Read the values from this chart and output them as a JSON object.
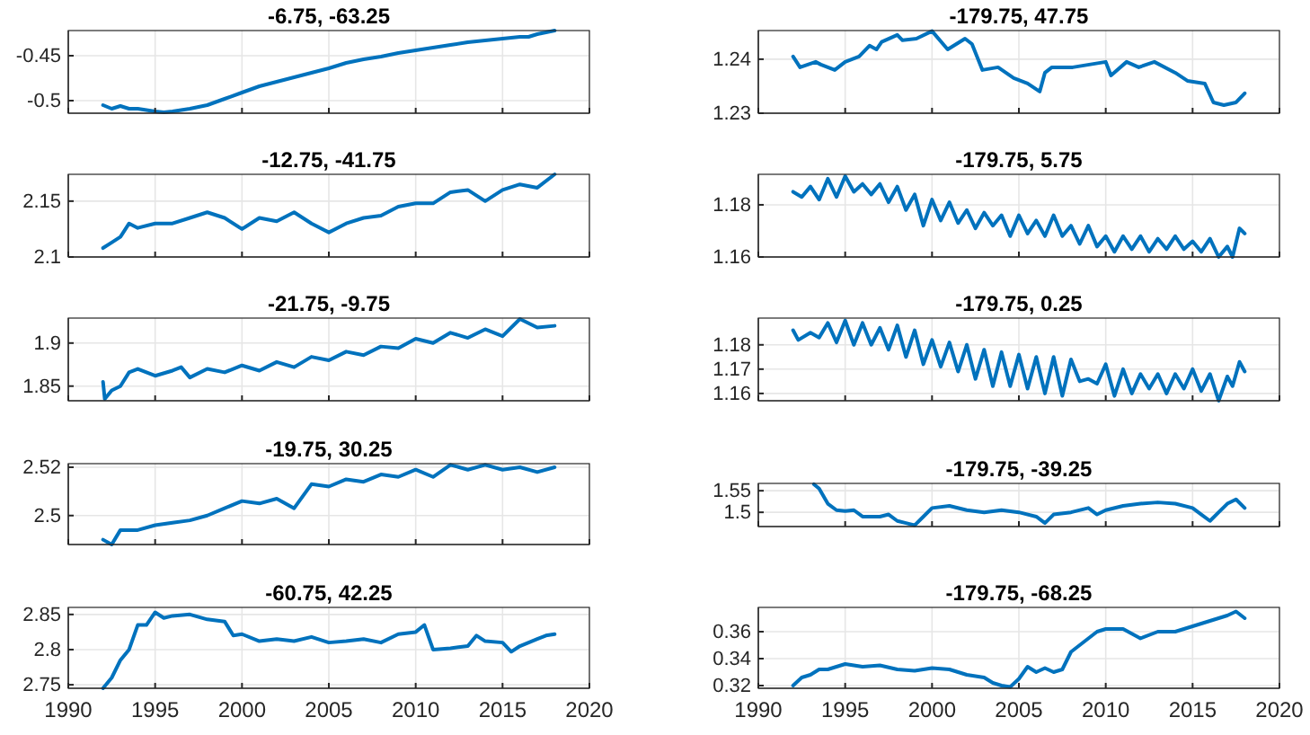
{
  "chart_data": [
    {
      "type": "line",
      "title": "-6.75, -63.25",
      "xlim": [
        1990,
        2020
      ],
      "xticks": [
        1990,
        1995,
        2000,
        2005,
        2010,
        2015,
        2020
      ],
      "ylim": [
        -0.514,
        -0.422
      ],
      "yticks": [
        -0.5,
        -0.45
      ],
      "grid": true,
      "tick_labels": "y",
      "line_style": "solid",
      "marker": "none",
      "series": [
        {
          "color": "#0072bd",
          "x": [
            1992,
            1992.5,
            1993,
            1993.5,
            1994,
            1995,
            1995.5,
            1996,
            1997,
            1998,
            1999,
            2000,
            2001,
            2002,
            2003,
            2004,
            2005,
            2006,
            2007,
            2008,
            2009,
            2010,
            2011,
            2012,
            2013,
            2014,
            2015,
            2016,
            2016.5,
            2017,
            2018
          ],
          "values": [
            -0.505,
            -0.509,
            -0.506,
            -0.509,
            -0.509,
            -0.512,
            -0.513,
            -0.512,
            -0.509,
            -0.505,
            -0.498,
            -0.491,
            -0.484,
            -0.479,
            -0.474,
            -0.469,
            -0.464,
            -0.458,
            -0.454,
            -0.451,
            -0.447,
            -0.444,
            -0.441,
            -0.438,
            -0.435,
            -0.433,
            -0.431,
            -0.429,
            -0.429,
            -0.426,
            -0.422
          ]
        }
      ]
    },
    {
      "type": "line",
      "title": "-12.75, -41.75",
      "xlim": [
        1990,
        2020
      ],
      "xticks": [
        1990,
        1995,
        2000,
        2005,
        2010,
        2015,
        2020
      ],
      "ylim": [
        2.1,
        2.174
      ],
      "yticks": [
        2.1,
        2.15
      ],
      "grid": true,
      "tick_labels": "y",
      "line_style": "solid",
      "marker": "none",
      "series": [
        {
          "color": "#0072bd",
          "x": [
            1992,
            1992.5,
            1993,
            1993.5,
            1994,
            1995,
            1996,
            1997,
            1998,
            1999,
            2000,
            2001,
            2002,
            2003,
            2004,
            2005,
            2006,
            2007,
            2008,
            2009,
            2010,
            2011,
            2012,
            2013,
            2014,
            2015,
            2016,
            2017,
            2018
          ],
          "values": [
            2.108,
            2.113,
            2.118,
            2.13,
            2.126,
            2.13,
            2.13,
            2.135,
            2.14,
            2.135,
            2.125,
            2.135,
            2.132,
            2.14,
            2.13,
            2.122,
            2.13,
            2.135,
            2.137,
            2.145,
            2.148,
            2.148,
            2.158,
            2.16,
            2.15,
            2.16,
            2.165,
            2.162,
            2.174
          ]
        }
      ]
    },
    {
      "type": "line",
      "title": "-21.75, -9.75",
      "xlim": [
        1990,
        2020
      ],
      "xticks": [
        1990,
        1995,
        2000,
        2005,
        2010,
        2015,
        2020
      ],
      "ylim": [
        1.833,
        1.929
      ],
      "yticks": [
        1.85,
        1.9
      ],
      "grid": true,
      "tick_labels": "y",
      "line_style": "solid",
      "marker": "none",
      "series": [
        {
          "color": "#0072bd",
          "x": [
            1992,
            1992.1,
            1992.5,
            1993,
            1993.5,
            1994,
            1995,
            1996,
            1996.5,
            1997,
            1998,
            1999,
            2000,
            2001,
            2002,
            2003,
            2004,
            2005,
            2006,
            2007,
            2008,
            2009,
            2010,
            2011,
            2012,
            2013,
            2014,
            2015,
            2016,
            2017,
            2018
          ],
          "values": [
            1.855,
            1.835,
            1.845,
            1.85,
            1.866,
            1.87,
            1.862,
            1.868,
            1.872,
            1.86,
            1.87,
            1.866,
            1.874,
            1.868,
            1.878,
            1.872,
            1.884,
            1.88,
            1.89,
            1.886,
            1.896,
            1.894,
            1.905,
            1.9,
            1.912,
            1.906,
            1.916,
            1.908,
            1.928,
            1.918,
            1.92
          ]
        }
      ]
    },
    {
      "type": "line",
      "title": "-19.75, 30.25",
      "xlim": [
        1990,
        2020
      ],
      "xticks": [
        1990,
        1995,
        2000,
        2005,
        2010,
        2015,
        2020
      ],
      "ylim": [
        2.488,
        2.5215
      ],
      "yticks": [
        2.5,
        2.52
      ],
      "grid": true,
      "tick_labels": "y",
      "line_style": "solid",
      "marker": "none",
      "series": [
        {
          "color": "#0072bd",
          "x": [
            1992,
            1992.5,
            1993,
            1994,
            1995,
            1996,
            1997,
            1998,
            1999,
            2000,
            2001,
            2002,
            2003,
            2004,
            2005,
            2006,
            2007,
            2008,
            2009,
            2010,
            2011,
            2012,
            2013,
            2014,
            2015,
            2016,
            2017,
            2018
          ],
          "values": [
            2.49,
            2.488,
            2.494,
            2.494,
            2.496,
            2.497,
            2.498,
            2.5,
            2.503,
            2.506,
            2.505,
            2.507,
            2.503,
            2.513,
            2.512,
            2.515,
            2.514,
            2.517,
            2.516,
            2.519,
            2.516,
            2.521,
            2.519,
            2.521,
            2.519,
            2.52,
            2.518,
            2.52
          ]
        }
      ]
    },
    {
      "type": "line",
      "title": "-60.75, 42.25",
      "xlim": [
        1990,
        2020
      ],
      "xticks": [
        1990,
        1995,
        2000,
        2005,
        2010,
        2015,
        2020
      ],
      "ylim": [
        2.745,
        2.86
      ],
      "yticks": [
        2.75,
        2.8,
        2.85
      ],
      "grid": true,
      "line_style": "solid",
      "marker": "none",
      "series": [
        {
          "color": "#0072bd",
          "x": [
            1992,
            1992.5,
            1993,
            1993.5,
            1994,
            1994.5,
            1995,
            1995.5,
            1996,
            1997,
            1998,
            1999,
            1999.5,
            2000,
            2001,
            2002,
            2003,
            2004,
            2005,
            2006,
            2007,
            2008,
            2009,
            2010,
            2010.5,
            2011,
            2012,
            2013,
            2013.5,
            2014,
            2015,
            2015.5,
            2016,
            2017,
            2017.5,
            2018
          ],
          "values": [
            2.745,
            2.76,
            2.785,
            2.8,
            2.835,
            2.835,
            2.853,
            2.845,
            2.848,
            2.85,
            2.843,
            2.84,
            2.82,
            2.822,
            2.812,
            2.815,
            2.812,
            2.818,
            2.81,
            2.812,
            2.815,
            2.81,
            2.822,
            2.825,
            2.835,
            2.8,
            2.802,
            2.805,
            2.82,
            2.812,
            2.81,
            2.797,
            2.805,
            2.815,
            2.82,
            2.822
          ]
        }
      ]
    },
    {
      "type": "line",
      "title": "-179.75, 47.75",
      "xlim": [
        1990,
        2020
      ],
      "xticks": [
        1990,
        1995,
        2000,
        2005,
        2010,
        2015,
        2020
      ],
      "ylim": [
        1.23,
        1.2453
      ],
      "yticks": [
        1.23,
        1.24
      ],
      "grid": true,
      "tick_labels": "y",
      "line_style": "solid",
      "marker": "none",
      "series": [
        {
          "color": "#0072bd",
          "x": [
            1992,
            1992.4,
            1993.3,
            1993.6,
            1994.4,
            1995,
            1995.8,
            1996.4,
            1996.8,
            1997.1,
            1998,
            1998.3,
            1999.1,
            2000,
            2000.9,
            2001.9,
            2002.3,
            2002.9,
            2003.8,
            2004.7,
            2005.5,
            2006.2,
            2006.5,
            2006.9,
            2008.1,
            2010,
            2010.3,
            2011.2,
            2011.9,
            2012.8,
            2014,
            2014.7,
            2015.7,
            2016.2,
            2016.8,
            2017.5,
            2018
          ],
          "values": [
            1.2405,
            1.2385,
            1.2395,
            1.239,
            1.238,
            1.2395,
            1.2405,
            1.2425,
            1.2418,
            1.2432,
            1.2445,
            1.2435,
            1.2438,
            1.2452,
            1.2418,
            1.2438,
            1.2428,
            1.238,
            1.2385,
            1.2365,
            1.2355,
            1.234,
            1.2375,
            1.2385,
            1.2385,
            1.2395,
            1.237,
            1.2395,
            1.2385,
            1.2395,
            1.2375,
            1.236,
            1.2355,
            1.232,
            1.2315,
            1.232,
            1.2337
          ]
        }
      ]
    },
    {
      "type": "line",
      "title": "-179.75, 5.75",
      "xlim": [
        1990,
        2020
      ],
      "xticks": [
        1990,
        1995,
        2000,
        2005,
        2010,
        2015,
        2020
      ],
      "ylim": [
        1.16,
        1.1917
      ],
      "yticks": [
        1.16,
        1.18
      ],
      "grid": true,
      "tick_labels": "y",
      "line_style": "solid",
      "marker": "none",
      "series": [
        {
          "color": "#0072bd",
          "x": [
            1992,
            1992.5,
            1993,
            1993.5,
            1994,
            1994.5,
            1995,
            1995.5,
            1996,
            1996.5,
            1997,
            1997.5,
            1998,
            1998.5,
            1999,
            1999.5,
            2000,
            2000.5,
            2001,
            2001.5,
            2002,
            2002.5,
            2003,
            2003.5,
            2004,
            2004.5,
            2005,
            2005.5,
            2006,
            2006.5,
            2007,
            2007.5,
            2008,
            2008.5,
            2009,
            2009.5,
            2010,
            2010.5,
            2011,
            2011.5,
            2012,
            2012.5,
            2013,
            2013.5,
            2014,
            2014.5,
            2015,
            2015.5,
            2016,
            2016.5,
            2017,
            2017.3,
            2017.7,
            2018
          ],
          "values": [
            1.185,
            1.183,
            1.187,
            1.182,
            1.19,
            1.183,
            1.191,
            1.185,
            1.188,
            1.184,
            1.188,
            1.181,
            1.187,
            1.178,
            1.184,
            1.172,
            1.182,
            1.174,
            1.181,
            1.173,
            1.178,
            1.171,
            1.177,
            1.172,
            1.176,
            1.168,
            1.176,
            1.169,
            1.174,
            1.168,
            1.176,
            1.168,
            1.172,
            1.165,
            1.172,
            1.164,
            1.168,
            1.162,
            1.168,
            1.163,
            1.168,
            1.162,
            1.167,
            1.163,
            1.168,
            1.163,
            1.166,
            1.162,
            1.167,
            1.16,
            1.164,
            1.16,
            1.171,
            1.169
          ]
        }
      ]
    },
    {
      "type": "line",
      "title": "-179.75, 0.25",
      "xlim": [
        1990,
        2020
      ],
      "xticks": [
        1990,
        1995,
        2000,
        2005,
        2010,
        2015,
        2020
      ],
      "ylim": [
        1.157,
        1.191
      ],
      "yticks": [
        1.16,
        1.17,
        1.18
      ],
      "grid": true,
      "tick_labels": "y",
      "line_style": "solid",
      "marker": "none",
      "series": [
        {
          "color": "#0072bd",
          "x": [
            1992,
            1992.3,
            1993,
            1993.5,
            1994,
            1994.5,
            1995,
            1995.5,
            1996,
            1996.5,
            1997,
            1997.5,
            1998,
            1998.5,
            1999,
            1999.5,
            2000,
            2000.5,
            2001,
            2001.5,
            2002,
            2002.5,
            2003,
            2003.5,
            2004,
            2004.5,
            2005,
            2005.5,
            2006,
            2006.5,
            2007,
            2007.5,
            2008,
            2008.5,
            2009,
            2009.5,
            2010,
            2010.5,
            2011,
            2011.5,
            2012,
            2012.5,
            2013,
            2013.5,
            2014,
            2014.5,
            2015,
            2015.5,
            2016,
            2016.5,
            2017,
            2017.3,
            2017.7,
            2018
          ],
          "values": [
            1.186,
            1.182,
            1.185,
            1.183,
            1.189,
            1.181,
            1.19,
            1.18,
            1.189,
            1.18,
            1.187,
            1.178,
            1.188,
            1.175,
            1.186,
            1.172,
            1.182,
            1.171,
            1.181,
            1.169,
            1.18,
            1.166,
            1.178,
            1.163,
            1.177,
            1.163,
            1.176,
            1.162,
            1.175,
            1.16,
            1.175,
            1.159,
            1.174,
            1.165,
            1.166,
            1.164,
            1.172,
            1.159,
            1.17,
            1.16,
            1.168,
            1.162,
            1.168,
            1.16,
            1.168,
            1.162,
            1.17,
            1.161,
            1.168,
            1.157,
            1.167,
            1.163,
            1.173,
            1.169
          ]
        }
      ]
    },
    {
      "type": "line",
      "title": "-179.75, -39.25",
      "xlim": [
        1990,
        2020
      ],
      "xticks": [
        1990,
        1995,
        2000,
        2005,
        2010,
        2015,
        2020
      ],
      "ylim": [
        1.467,
        1.567
      ],
      "yticks": [
        1.5,
        1.55
      ],
      "grid": true,
      "tick_labels": "y",
      "line_style": "solid",
      "marker": "none",
      "series": [
        {
          "color": "#0072bd",
          "x": [
            1993.2,
            1993.5,
            1994,
            1994.5,
            1995,
            1995.5,
            1996,
            1997,
            1997.5,
            1998,
            1998.5,
            1999,
            1999.5,
            2000,
            2001,
            2002,
            2003,
            2004,
            2005,
            2006,
            2006.5,
            2007,
            2008,
            2009,
            2009.5,
            2010,
            2011,
            2012,
            2013,
            2014,
            2015,
            2015.5,
            2016,
            2016.5,
            2017,
            2017.5,
            2018
          ],
          "values": [
            1.565,
            1.555,
            1.52,
            1.505,
            1.503,
            1.505,
            1.49,
            1.49,
            1.495,
            1.48,
            1.475,
            1.47,
            1.49,
            1.51,
            1.515,
            1.505,
            1.5,
            1.505,
            1.5,
            1.49,
            1.475,
            1.495,
            1.5,
            1.51,
            1.495,
            1.505,
            1.515,
            1.52,
            1.523,
            1.52,
            1.51,
            1.495,
            1.48,
            1.5,
            1.52,
            1.53,
            1.51
          ]
        }
      ]
    },
    {
      "type": "line",
      "title": "-179.75, -68.25",
      "xlim": [
        1990,
        2020
      ],
      "xticks": [
        1990,
        1995,
        2000,
        2005,
        2010,
        2015,
        2020
      ],
      "ylim": [
        0.318,
        0.378
      ],
      "yticks": [
        0.32,
        0.34,
        0.36
      ],
      "grid": true,
      "line_style": "solid",
      "marker": "none",
      "series": [
        {
          "color": "#0072bd",
          "x": [
            1992,
            1992.5,
            1993,
            1993.5,
            1994,
            1995,
            1996,
            1997,
            1998,
            1999,
            2000,
            2001,
            2002,
            2003,
            2003.5,
            2004,
            2004.5,
            2005,
            2005.5,
            2006,
            2006.5,
            2007,
            2007.5,
            2008,
            2009,
            2009.5,
            2010,
            2011,
            2012,
            2013,
            2014,
            2015,
            2016,
            2017,
            2017.5,
            2018
          ],
          "values": [
            0.32,
            0.326,
            0.328,
            0.332,
            0.332,
            0.336,
            0.334,
            0.335,
            0.332,
            0.331,
            0.333,
            0.332,
            0.328,
            0.326,
            0.322,
            0.32,
            0.319,
            0.325,
            0.334,
            0.33,
            0.333,
            0.33,
            0.332,
            0.345,
            0.355,
            0.36,
            0.362,
            0.362,
            0.355,
            0.36,
            0.36,
            0.364,
            0.368,
            0.372,
            0.375,
            0.37
          ]
        }
      ]
    }
  ]
}
